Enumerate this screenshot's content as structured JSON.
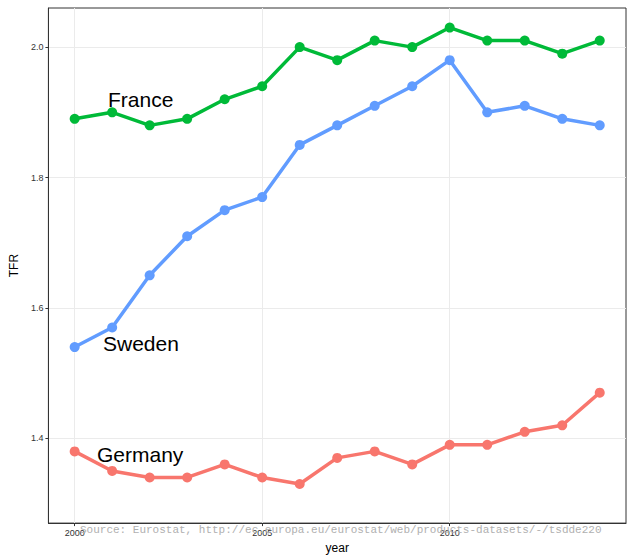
{
  "chart_data": {
    "type": "line",
    "x_label": "year",
    "y_label": "TFR",
    "x": [
      2000,
      2001,
      2002,
      2003,
      2004,
      2005,
      2006,
      2007,
      2008,
      2009,
      2010,
      2011,
      2012,
      2013,
      2014
    ],
    "xlim": [
      1999.3,
      2014.7
    ],
    "xticks": [
      2000,
      2005,
      2010
    ],
    "ylim": [
      1.27,
      2.06
    ],
    "yticks": [
      {
        "value": 1.4,
        "label": "1.4"
      },
      {
        "value": 1.6,
        "label": "1.6"
      },
      {
        "value": 1.8,
        "label": "1.8"
      },
      {
        "value": 2.0,
        "label": "2.0"
      }
    ],
    "grid": true,
    "marker": "circle",
    "line_style": "solid",
    "series": [
      {
        "name": "France",
        "color": "#00BA38",
        "values": [
          1.89,
          1.9,
          1.88,
          1.89,
          1.92,
          1.94,
          2.0,
          1.98,
          2.01,
          2.0,
          2.03,
          2.01,
          2.01,
          1.99,
          2.01
        ]
      },
      {
        "name": "Sweden",
        "color": "#619CFF",
        "values": [
          1.54,
          1.57,
          1.65,
          1.71,
          1.75,
          1.77,
          1.85,
          1.88,
          1.91,
          1.94,
          1.98,
          1.9,
          1.91,
          1.89,
          1.88
        ]
      },
      {
        "name": "Germany",
        "color": "#F8766D",
        "values": [
          1.38,
          1.35,
          1.34,
          1.34,
          1.36,
          1.34,
          1.33,
          1.37,
          1.38,
          1.36,
          1.39,
          1.39,
          1.41,
          1.42,
          1.47
        ]
      }
    ],
    "annotations": [
      "Source: Eurostat, http://ec.europa.eu/eurostat/web/products-datasets/-/tsdde220"
    ]
  }
}
